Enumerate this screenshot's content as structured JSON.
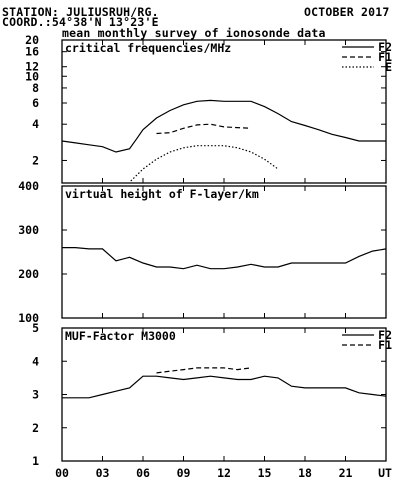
{
  "header": {
    "station": "STATION: JULIUSRUH/RG.",
    "period": "OCTOBER 2017",
    "coords": "COORD.:54°38'N 13°23'E",
    "subtitle": "mean monthly survey of ionosonde data"
  },
  "chart_data": [
    {
      "type": "line",
      "title": "critical frequencies/MHz",
      "yscale": "log",
      "ylim": [
        1.3,
        20
      ],
      "yticks": [
        2,
        4,
        6,
        8,
        10,
        12,
        16,
        20
      ],
      "series": [
        {
          "name": "F2",
          "style": "solid",
          "x": [
            0,
            1,
            2,
            3,
            4,
            5,
            5.5,
            6,
            7,
            8,
            9,
            10,
            11,
            12,
            13,
            14,
            15,
            16,
            17,
            18,
            19,
            20,
            21,
            22,
            23,
            24
          ],
          "y": [
            2.9,
            2.8,
            2.7,
            2.6,
            2.35,
            2.5,
            3.0,
            3.6,
            4.5,
            5.2,
            5.8,
            6.2,
            6.3,
            6.2,
            6.2,
            6.2,
            5.6,
            4.9,
            4.2,
            3.9,
            3.6,
            3.3,
            3.1,
            2.9,
            2.9,
            2.9
          ]
        },
        {
          "name": "F1",
          "style": "dashed",
          "x": [
            7,
            8,
            9,
            10,
            11,
            12,
            13,
            14
          ],
          "y": [
            3.35,
            3.4,
            3.7,
            3.95,
            4.0,
            3.8,
            3.75,
            3.7
          ]
        },
        {
          "name": "E",
          "style": "dotted",
          "x": [
            5.1,
            6,
            7,
            8,
            9,
            10,
            11,
            12,
            13,
            14,
            15,
            16
          ],
          "y": [
            1.35,
            1.7,
            2.05,
            2.35,
            2.55,
            2.65,
            2.65,
            2.65,
            2.55,
            2.35,
            2.05,
            1.7
          ]
        }
      ]
    },
    {
      "type": "line",
      "title": "virtual height of F-layer/km",
      "ylim": [
        100,
        400
      ],
      "yticks": [
        100,
        200,
        300,
        400
      ],
      "series": [
        {
          "name": "",
          "style": "solid",
          "x": [
            0,
            1,
            2,
            3,
            4,
            5,
            6,
            7,
            8,
            9,
            10,
            11,
            12,
            13,
            14,
            15,
            16,
            17,
            18,
            19,
            20,
            21,
            22,
            23,
            24
          ],
          "y": [
            260,
            260,
            257,
            257,
            230,
            238,
            225,
            216,
            216,
            212,
            220,
            212,
            212,
            216,
            222,
            216,
            216,
            225,
            225,
            225,
            225,
            225,
            240,
            252,
            257
          ]
        }
      ]
    },
    {
      "type": "line",
      "title": "MUF-Factor M3000",
      "ylim": [
        1,
        5
      ],
      "yticks": [
        1,
        2,
        3,
        4,
        5
      ],
      "series": [
        {
          "name": "F2",
          "style": "solid",
          "x": [
            0,
            1,
            2,
            3,
            4,
            5,
            6,
            7,
            8,
            9,
            10,
            11,
            12,
            13,
            14,
            15,
            16,
            17,
            18,
            19,
            20,
            21,
            22,
            23,
            24
          ],
          "y": [
            2.9,
            2.9,
            2.9,
            3.0,
            3.1,
            3.2,
            3.55,
            3.55,
            3.5,
            3.45,
            3.5,
            3.55,
            3.5,
            3.45,
            3.45,
            3.55,
            3.5,
            3.25,
            3.2,
            3.2,
            3.2,
            3.2,
            3.05,
            3.0,
            2.95
          ]
        },
        {
          "name": "F1",
          "style": "dashed",
          "x": [
            7,
            8,
            9,
            10,
            11,
            12,
            13,
            14
          ],
          "y": [
            3.65,
            3.7,
            3.75,
            3.8,
            3.8,
            3.8,
            3.75,
            3.8
          ]
        }
      ]
    }
  ],
  "x_axis": {
    "xlim": [
      0,
      24
    ],
    "ticks": [
      0,
      3,
      6,
      9,
      12,
      15,
      18,
      21
    ],
    "tick_labels": [
      "00",
      "03",
      "06",
      "09",
      "12",
      "15",
      "18",
      "21"
    ],
    "unit_label": "UT"
  }
}
